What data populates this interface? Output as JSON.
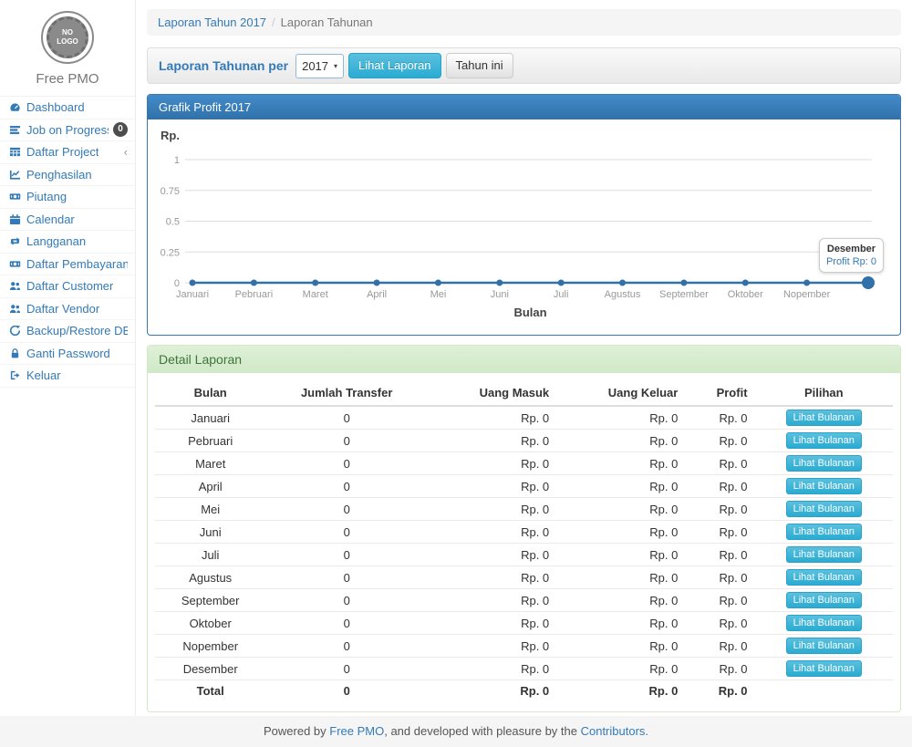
{
  "sidebar": {
    "logo_text": "NO\nLOGO",
    "brand": "Free PMO",
    "items": [
      {
        "label": "Dashboard",
        "icon": "dashboard"
      },
      {
        "label": "Job on Progress",
        "icon": "tasks",
        "badge": "0"
      },
      {
        "label": "Daftar Project",
        "icon": "table",
        "chevron": "‹"
      },
      {
        "label": "Penghasilan",
        "icon": "line-chart"
      },
      {
        "label": "Piutang",
        "icon": "money"
      },
      {
        "label": "Calendar",
        "icon": "calendar"
      },
      {
        "label": "Langganan",
        "icon": "retweet"
      },
      {
        "label": "Daftar Pembayaran",
        "icon": "money"
      },
      {
        "label": "Daftar Customer",
        "icon": "users"
      },
      {
        "label": "Daftar Vendor",
        "icon": "users"
      },
      {
        "label": "Backup/Restore DB",
        "icon": "refresh"
      },
      {
        "label": "Ganti Password",
        "icon": "lock"
      },
      {
        "label": "Keluar",
        "icon": "sign-out"
      }
    ]
  },
  "breadcrumb": {
    "link": "Laporan Tahun 2017",
    "separator": "/",
    "active": "Laporan Tahunan"
  },
  "toolbar": {
    "label": "Laporan Tahunan per",
    "year_value": "2017",
    "caret": "▾",
    "view_button": "Lihat Laporan",
    "this_year_button": "Tahun ini"
  },
  "chart_panel": {
    "title": "Grafik Profit 2017"
  },
  "chart_data": {
    "type": "line",
    "title": "Grafik Profit 2017",
    "ylabel": "Rp.",
    "xlabel": "Bulan",
    "categories": [
      "Januari",
      "Pebruari",
      "Maret",
      "April",
      "Mei",
      "Juni",
      "Juli",
      "Agustus",
      "September",
      "Oktober",
      "Nopember",
      "Desember"
    ],
    "series": [
      {
        "name": "Profit",
        "values": [
          0,
          0,
          0,
          0,
          0,
          0,
          0,
          0,
          0,
          0,
          0,
          0
        ]
      }
    ],
    "ylim": [
      0,
      1
    ],
    "yticks": [
      "1",
      "0.75",
      "0.5",
      "0.25",
      "0"
    ],
    "ytick_values": [
      1,
      0.75,
      0.5,
      0.25,
      0
    ],
    "grid": true,
    "legend_position": "none",
    "visible_xtick_labels": [
      "Januari",
      "Pebruari",
      "Maret",
      "April",
      "Mei",
      "Juni",
      "Juli",
      "Agustus",
      "September",
      "Oktober",
      "Nopember"
    ],
    "hover_point": {
      "index": 11,
      "label": "Desember",
      "value_text": "Profit Rp: 0"
    }
  },
  "detail_panel": {
    "title": "Detail Laporan",
    "table": {
      "headers": [
        "Bulan",
        "Jumlah Transfer",
        "Uang Masuk",
        "Uang Keluar",
        "Profit",
        "Pilihan"
      ],
      "rows": [
        {
          "bulan": "Januari",
          "jumlah": "0",
          "masuk": "Rp. 0",
          "keluar": "Rp. 0",
          "profit": "Rp. 0",
          "action": "Lihat Bulanan"
        },
        {
          "bulan": "Pebruari",
          "jumlah": "0",
          "masuk": "Rp. 0",
          "keluar": "Rp. 0",
          "profit": "Rp. 0",
          "action": "Lihat Bulanan"
        },
        {
          "bulan": "Maret",
          "jumlah": "0",
          "masuk": "Rp. 0",
          "keluar": "Rp. 0",
          "profit": "Rp. 0",
          "action": "Lihat Bulanan"
        },
        {
          "bulan": "April",
          "jumlah": "0",
          "masuk": "Rp. 0",
          "keluar": "Rp. 0",
          "profit": "Rp. 0",
          "action": "Lihat Bulanan"
        },
        {
          "bulan": "Mei",
          "jumlah": "0",
          "masuk": "Rp. 0",
          "keluar": "Rp. 0",
          "profit": "Rp. 0",
          "action": "Lihat Bulanan"
        },
        {
          "bulan": "Juni",
          "jumlah": "0",
          "masuk": "Rp. 0",
          "keluar": "Rp. 0",
          "profit": "Rp. 0",
          "action": "Lihat Bulanan"
        },
        {
          "bulan": "Juli",
          "jumlah": "0",
          "masuk": "Rp. 0",
          "keluar": "Rp. 0",
          "profit": "Rp. 0",
          "action": "Lihat Bulanan"
        },
        {
          "bulan": "Agustus",
          "jumlah": "0",
          "masuk": "Rp. 0",
          "keluar": "Rp. 0",
          "profit": "Rp. 0",
          "action": "Lihat Bulanan"
        },
        {
          "bulan": "September",
          "jumlah": "0",
          "masuk": "Rp. 0",
          "keluar": "Rp. 0",
          "profit": "Rp. 0",
          "action": "Lihat Bulanan"
        },
        {
          "bulan": "Oktober",
          "jumlah": "0",
          "masuk": "Rp. 0",
          "keluar": "Rp. 0",
          "profit": "Rp. 0",
          "action": "Lihat Bulanan"
        },
        {
          "bulan": "Nopember",
          "jumlah": "0",
          "masuk": "Rp. 0",
          "keluar": "Rp. 0",
          "profit": "Rp. 0",
          "action": "Lihat Bulanan"
        },
        {
          "bulan": "Desember",
          "jumlah": "0",
          "masuk": "Rp. 0",
          "keluar": "Rp. 0",
          "profit": "Rp. 0",
          "action": "Lihat Bulanan"
        }
      ],
      "total": {
        "label": "Total",
        "jumlah": "0",
        "masuk": "Rp. 0",
        "keluar": "Rp. 0",
        "profit": "Rp. 0"
      }
    }
  },
  "footer": {
    "text_before": "Powered by ",
    "link1": "Free PMO",
    "text_middle": ", and developed with pleasure by the ",
    "link2": "Contributors."
  },
  "colors": {
    "accent": "#337ab7",
    "info_button": "#5bc0de",
    "chart_header_start": "#428bca",
    "chart_header_end": "#3071a9",
    "line_color": "#3071a9",
    "grid_color": "#dddddd",
    "tick_text": "#999999",
    "axis_label_text": "#555555",
    "success_header_bg": "#dff0d8",
    "success_header_text": "#3c763d",
    "badge_bg": "#4d4d4d",
    "footer_bg": "#f5f5f5"
  }
}
